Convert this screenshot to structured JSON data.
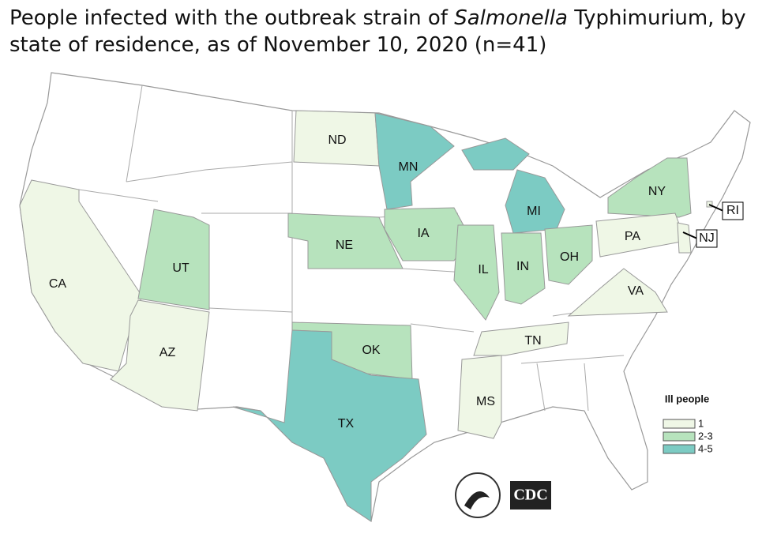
{
  "header": {
    "title_parts": [
      "People infected with the outbreak strain of ",
      "Salmonella",
      " Typhimurium, by state of residence, as of November 10, 2020 (n=41)"
    ]
  },
  "map": {
    "states": [
      {
        "label": "CA",
        "level": 0
      },
      {
        "label": "AZ",
        "level": 0
      },
      {
        "label": "UT",
        "level": 1
      },
      {
        "label": "ND",
        "level": 0
      },
      {
        "label": "MN",
        "level": 2
      },
      {
        "label": "MI",
        "level": 2
      },
      {
        "label": "NE",
        "level": 1
      },
      {
        "label": "IA",
        "level": 1
      },
      {
        "label": "IL",
        "level": 1
      },
      {
        "label": "IN",
        "level": 1
      },
      {
        "label": "OH",
        "level": 1
      },
      {
        "label": "NY",
        "level": 1
      },
      {
        "label": "PA",
        "level": 0
      },
      {
        "label": "NJ",
        "level": 0
      },
      {
        "label": "VA",
        "level": 0
      },
      {
        "label": "TN",
        "level": 0
      },
      {
        "label": "OK",
        "level": 1
      },
      {
        "label": "TX",
        "level": 2
      },
      {
        "label": "MS",
        "level": 0
      },
      {
        "label": "RI",
        "level": 0
      }
    ],
    "legend": {
      "title": "Ill people",
      "items": [
        {
          "label": "1",
          "color": "#eff7e6"
        },
        {
          "label": "2-3",
          "color": "#b7e3bd"
        },
        {
          "label": "4-5",
          "color": "#7ccbc3"
        }
      ]
    },
    "logo_text": "CDC"
  }
}
